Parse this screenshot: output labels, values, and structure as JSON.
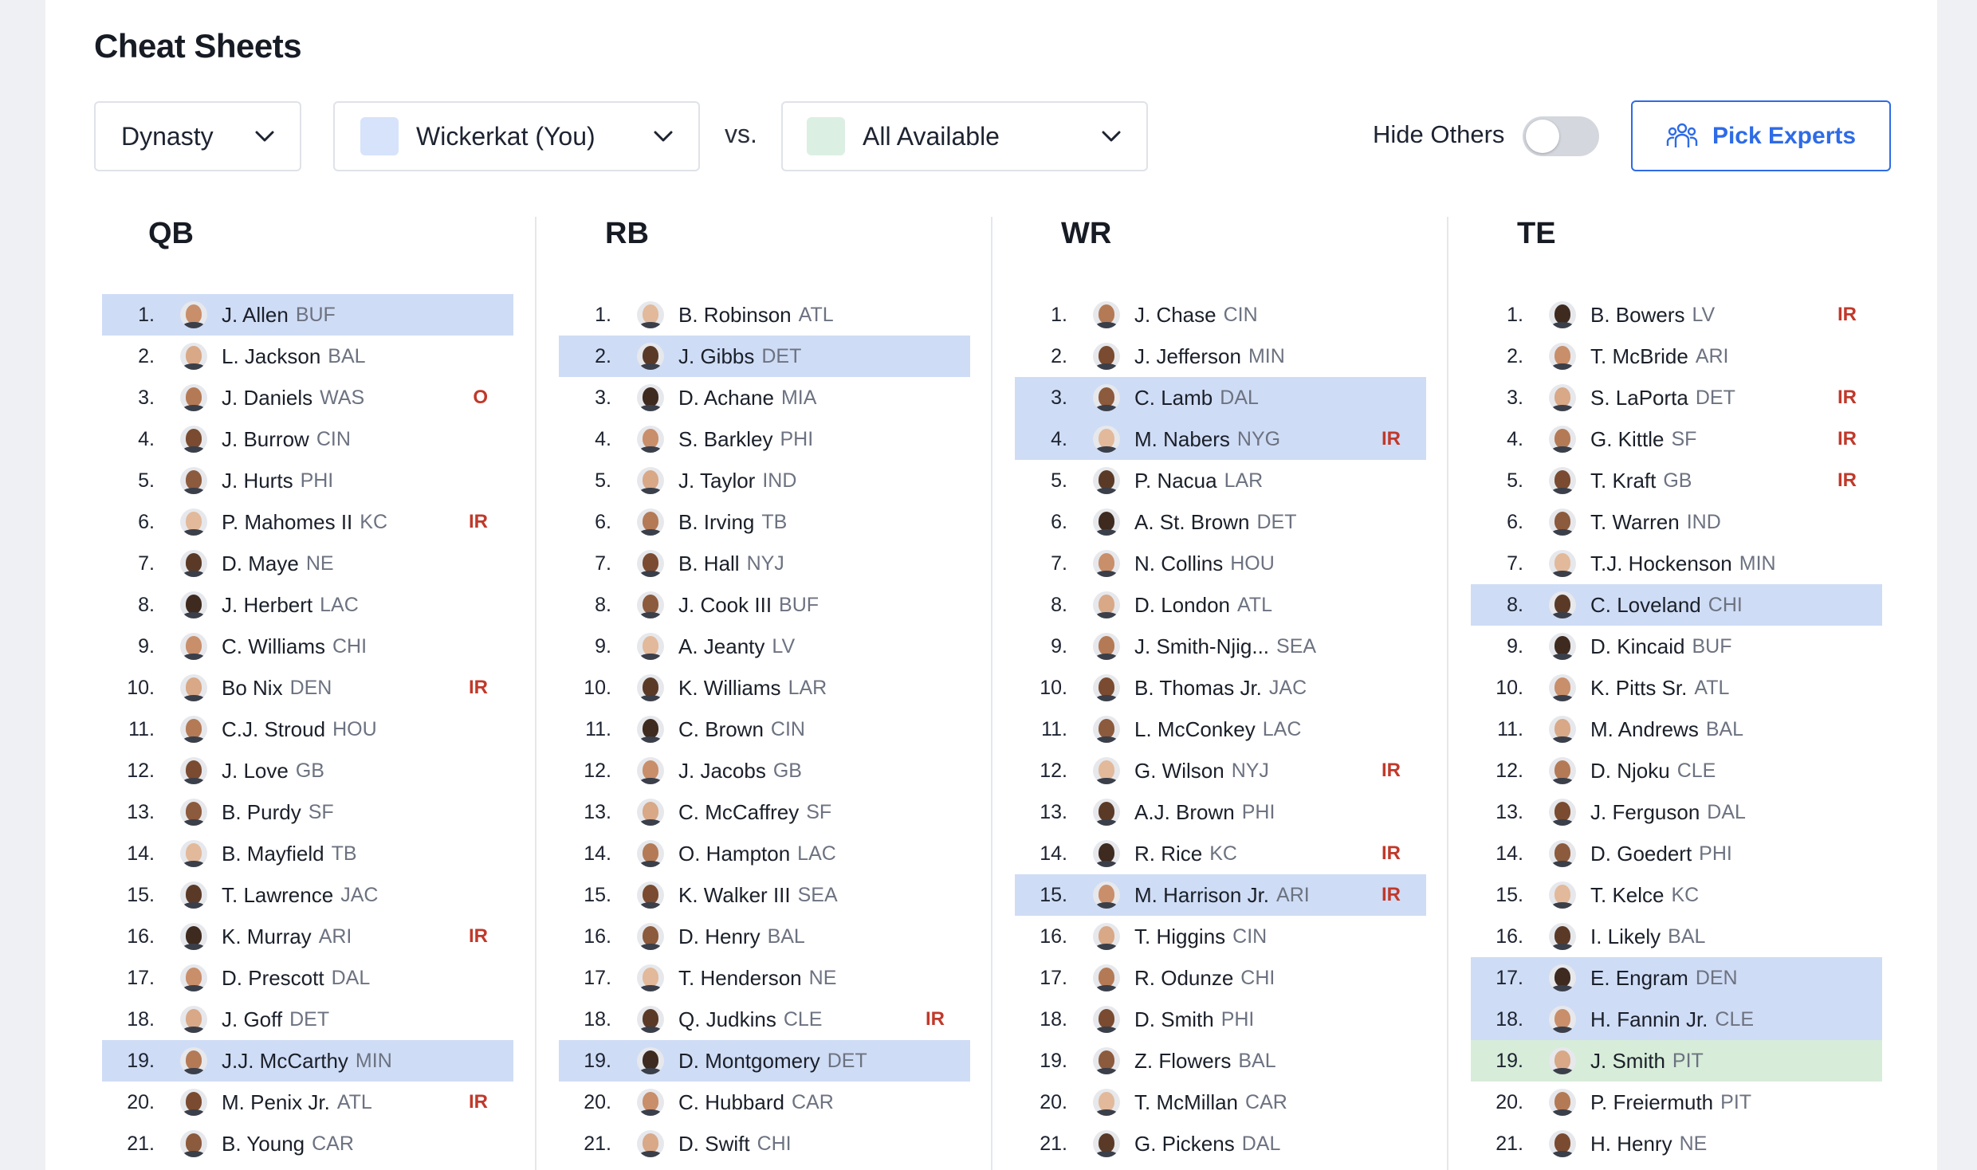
{
  "page": {
    "title": "Cheat Sheets"
  },
  "filters": {
    "format": "Dynasty",
    "team": {
      "label": "Wickerkat (You)",
      "color": "#d6e3fa"
    },
    "vs_label": "vs.",
    "opponent": {
      "label": "All Available",
      "color": "#dcefe3"
    },
    "hide_others_label": "Hide Others",
    "hide_others_on": false,
    "pick_experts_label": "Pick Experts"
  },
  "colors": {
    "highlight_blue": "#cfdcf5",
    "highlight_green": "#d7ecd9",
    "accent": "#2e6be6",
    "status": "#c0392b"
  },
  "columns": [
    {
      "title": "QB",
      "rows": [
        {
          "rank": "1.",
          "name": "J. Allen",
          "team": "BUF",
          "status": "",
          "hl": "blue"
        },
        {
          "rank": "2.",
          "name": "L. Jackson",
          "team": "BAL",
          "status": "",
          "hl": ""
        },
        {
          "rank": "3.",
          "name": "J. Daniels",
          "team": "WAS",
          "status": "O",
          "hl": ""
        },
        {
          "rank": "4.",
          "name": "J. Burrow",
          "team": "CIN",
          "status": "",
          "hl": ""
        },
        {
          "rank": "5.",
          "name": "J. Hurts",
          "team": "PHI",
          "status": "",
          "hl": ""
        },
        {
          "rank": "6.",
          "name": "P. Mahomes II",
          "team": "KC",
          "status": "IR",
          "hl": ""
        },
        {
          "rank": "7.",
          "name": "D. Maye",
          "team": "NE",
          "status": "",
          "hl": ""
        },
        {
          "rank": "8.",
          "name": "J. Herbert",
          "team": "LAC",
          "status": "",
          "hl": ""
        },
        {
          "rank": "9.",
          "name": "C. Williams",
          "team": "CHI",
          "status": "",
          "hl": ""
        },
        {
          "rank": "10.",
          "name": "Bo Nix",
          "team": "DEN",
          "status": "IR",
          "hl": ""
        },
        {
          "rank": "11.",
          "name": "C.J. Stroud",
          "team": "HOU",
          "status": "",
          "hl": ""
        },
        {
          "rank": "12.",
          "name": "J. Love",
          "team": "GB",
          "status": "",
          "hl": ""
        },
        {
          "rank": "13.",
          "name": "B. Purdy",
          "team": "SF",
          "status": "",
          "hl": ""
        },
        {
          "rank": "14.",
          "name": "B. Mayfield",
          "team": "TB",
          "status": "",
          "hl": ""
        },
        {
          "rank": "15.",
          "name": "T. Lawrence",
          "team": "JAC",
          "status": "",
          "hl": ""
        },
        {
          "rank": "16.",
          "name": "K. Murray",
          "team": "ARI",
          "status": "IR",
          "hl": ""
        },
        {
          "rank": "17.",
          "name": "D. Prescott",
          "team": "DAL",
          "status": "",
          "hl": ""
        },
        {
          "rank": "18.",
          "name": "J. Goff",
          "team": "DET",
          "status": "",
          "hl": ""
        },
        {
          "rank": "19.",
          "name": "J.J. McCarthy",
          "team": "MIN",
          "status": "",
          "hl": "blue"
        },
        {
          "rank": "20.",
          "name": "M. Penix Jr.",
          "team": "ATL",
          "status": "IR",
          "hl": ""
        },
        {
          "rank": "21.",
          "name": "B. Young",
          "team": "CAR",
          "status": "",
          "hl": ""
        }
      ]
    },
    {
      "title": "RB",
      "rows": [
        {
          "rank": "1.",
          "name": "B. Robinson",
          "team": "ATL",
          "status": "",
          "hl": ""
        },
        {
          "rank": "2.",
          "name": "J. Gibbs",
          "team": "DET",
          "status": "",
          "hl": "blue"
        },
        {
          "rank": "3.",
          "name": "D. Achane",
          "team": "MIA",
          "status": "",
          "hl": ""
        },
        {
          "rank": "4.",
          "name": "S. Barkley",
          "team": "PHI",
          "status": "",
          "hl": ""
        },
        {
          "rank": "5.",
          "name": "J. Taylor",
          "team": "IND",
          "status": "",
          "hl": ""
        },
        {
          "rank": "6.",
          "name": "B. Irving",
          "team": "TB",
          "status": "",
          "hl": ""
        },
        {
          "rank": "7.",
          "name": "B. Hall",
          "team": "NYJ",
          "status": "",
          "hl": ""
        },
        {
          "rank": "8.",
          "name": "J. Cook III",
          "team": "BUF",
          "status": "",
          "hl": ""
        },
        {
          "rank": "9.",
          "name": "A. Jeanty",
          "team": "LV",
          "status": "",
          "hl": ""
        },
        {
          "rank": "10.",
          "name": "K. Williams",
          "team": "LAR",
          "status": "",
          "hl": ""
        },
        {
          "rank": "11.",
          "name": "C. Brown",
          "team": "CIN",
          "status": "",
          "hl": ""
        },
        {
          "rank": "12.",
          "name": "J. Jacobs",
          "team": "GB",
          "status": "",
          "hl": ""
        },
        {
          "rank": "13.",
          "name": "C. McCaffrey",
          "team": "SF",
          "status": "",
          "hl": ""
        },
        {
          "rank": "14.",
          "name": "O. Hampton",
          "team": "LAC",
          "status": "",
          "hl": ""
        },
        {
          "rank": "15.",
          "name": "K. Walker III",
          "team": "SEA",
          "status": "",
          "hl": ""
        },
        {
          "rank": "16.",
          "name": "D. Henry",
          "team": "BAL",
          "status": "",
          "hl": ""
        },
        {
          "rank": "17.",
          "name": "T. Henderson",
          "team": "NE",
          "status": "",
          "hl": ""
        },
        {
          "rank": "18.",
          "name": "Q. Judkins",
          "team": "CLE",
          "status": "IR",
          "hl": ""
        },
        {
          "rank": "19.",
          "name": "D. Montgomery",
          "team": "DET",
          "status": "",
          "hl": "blue"
        },
        {
          "rank": "20.",
          "name": "C. Hubbard",
          "team": "CAR",
          "status": "",
          "hl": ""
        },
        {
          "rank": "21.",
          "name": "D. Swift",
          "team": "CHI",
          "status": "",
          "hl": ""
        }
      ]
    },
    {
      "title": "WR",
      "rows": [
        {
          "rank": "1.",
          "name": "J. Chase",
          "team": "CIN",
          "status": "",
          "hl": ""
        },
        {
          "rank": "2.",
          "name": "J. Jefferson",
          "team": "MIN",
          "status": "",
          "hl": ""
        },
        {
          "rank": "3.",
          "name": "C. Lamb",
          "team": "DAL",
          "status": "",
          "hl": "blue"
        },
        {
          "rank": "4.",
          "name": "M. Nabers",
          "team": "NYG",
          "status": "IR",
          "hl": "blue"
        },
        {
          "rank": "5.",
          "name": "P. Nacua",
          "team": "LAR",
          "status": "",
          "hl": ""
        },
        {
          "rank": "6.",
          "name": "A. St. Brown",
          "team": "DET",
          "status": "",
          "hl": ""
        },
        {
          "rank": "7.",
          "name": "N. Collins",
          "team": "HOU",
          "status": "",
          "hl": ""
        },
        {
          "rank": "8.",
          "name": "D. London",
          "team": "ATL",
          "status": "",
          "hl": ""
        },
        {
          "rank": "9.",
          "name": "J. Smith-Njig...",
          "team": "SEA",
          "status": "",
          "hl": ""
        },
        {
          "rank": "10.",
          "name": "B. Thomas Jr.",
          "team": "JAC",
          "status": "",
          "hl": ""
        },
        {
          "rank": "11.",
          "name": "L. McConkey",
          "team": "LAC",
          "status": "",
          "hl": ""
        },
        {
          "rank": "12.",
          "name": "G. Wilson",
          "team": "NYJ",
          "status": "IR",
          "hl": ""
        },
        {
          "rank": "13.",
          "name": "A.J. Brown",
          "team": "PHI",
          "status": "",
          "hl": ""
        },
        {
          "rank": "14.",
          "name": "R. Rice",
          "team": "KC",
          "status": "IR",
          "hl": ""
        },
        {
          "rank": "15.",
          "name": "M. Harrison Jr.",
          "team": "ARI",
          "status": "IR",
          "hl": "blue"
        },
        {
          "rank": "16.",
          "name": "T. Higgins",
          "team": "CIN",
          "status": "",
          "hl": ""
        },
        {
          "rank": "17.",
          "name": "R. Odunze",
          "team": "CHI",
          "status": "",
          "hl": ""
        },
        {
          "rank": "18.",
          "name": "D. Smith",
          "team": "PHI",
          "status": "",
          "hl": ""
        },
        {
          "rank": "19.",
          "name": "Z. Flowers",
          "team": "BAL",
          "status": "",
          "hl": ""
        },
        {
          "rank": "20.",
          "name": "T. McMillan",
          "team": "CAR",
          "status": "",
          "hl": ""
        },
        {
          "rank": "21.",
          "name": "G. Pickens",
          "team": "DAL",
          "status": "",
          "hl": ""
        }
      ]
    },
    {
      "title": "TE",
      "rows": [
        {
          "rank": "1.",
          "name": "B. Bowers",
          "team": "LV",
          "status": "IR",
          "hl": ""
        },
        {
          "rank": "2.",
          "name": "T. McBride",
          "team": "ARI",
          "status": "",
          "hl": ""
        },
        {
          "rank": "3.",
          "name": "S. LaPorta",
          "team": "DET",
          "status": "IR",
          "hl": ""
        },
        {
          "rank": "4.",
          "name": "G. Kittle",
          "team": "SF",
          "status": "IR",
          "hl": ""
        },
        {
          "rank": "5.",
          "name": "T. Kraft",
          "team": "GB",
          "status": "IR",
          "hl": ""
        },
        {
          "rank": "6.",
          "name": "T. Warren",
          "team": "IND",
          "status": "",
          "hl": ""
        },
        {
          "rank": "7.",
          "name": "T.J. Hockenson",
          "team": "MIN",
          "status": "",
          "hl": ""
        },
        {
          "rank": "8.",
          "name": "C. Loveland",
          "team": "CHI",
          "status": "",
          "hl": "blue"
        },
        {
          "rank": "9.",
          "name": "D. Kincaid",
          "team": "BUF",
          "status": "",
          "hl": ""
        },
        {
          "rank": "10.",
          "name": "K. Pitts Sr.",
          "team": "ATL",
          "status": "",
          "hl": ""
        },
        {
          "rank": "11.",
          "name": "M. Andrews",
          "team": "BAL",
          "status": "",
          "hl": ""
        },
        {
          "rank": "12.",
          "name": "D. Njoku",
          "team": "CLE",
          "status": "",
          "hl": ""
        },
        {
          "rank": "13.",
          "name": "J. Ferguson",
          "team": "DAL",
          "status": "",
          "hl": ""
        },
        {
          "rank": "14.",
          "name": "D. Goedert",
          "team": "PHI",
          "status": "",
          "hl": ""
        },
        {
          "rank": "15.",
          "name": "T. Kelce",
          "team": "KC",
          "status": "",
          "hl": ""
        },
        {
          "rank": "16.",
          "name": "I. Likely",
          "team": "BAL",
          "status": "",
          "hl": ""
        },
        {
          "rank": "17.",
          "name": "E. Engram",
          "team": "DEN",
          "status": "",
          "hl": "blue"
        },
        {
          "rank": "18.",
          "name": "H. Fannin Jr.",
          "team": "CLE",
          "status": "",
          "hl": "blue"
        },
        {
          "rank": "19.",
          "name": "J. Smith",
          "team": "PIT",
          "status": "",
          "hl": "green"
        },
        {
          "rank": "20.",
          "name": "P. Freiermuth",
          "team": "PIT",
          "status": "",
          "hl": ""
        },
        {
          "rank": "21.",
          "name": "H. Henry",
          "team": "NE",
          "status": "",
          "hl": ""
        }
      ]
    }
  ]
}
